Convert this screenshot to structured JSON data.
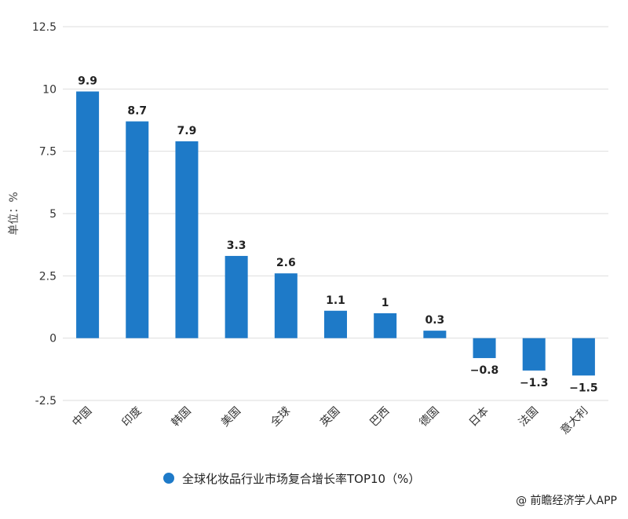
{
  "chart_data": {
    "type": "bar",
    "categories": [
      "中国",
      "印度",
      "韩国",
      "美国",
      "全球",
      "英国",
      "巴西",
      "德国",
      "日本",
      "法国",
      "意大利"
    ],
    "values": [
      9.9,
      8.7,
      7.9,
      3.3,
      2.6,
      1.1,
      1,
      0.3,
      -0.8,
      -1.3,
      -1.5
    ],
    "data_labels": [
      "9.9",
      "8.7",
      "7.9",
      "3.3",
      "2.6",
      "1.1",
      "1",
      "0.3",
      "−0.8",
      "−1.3",
      "−1.5"
    ],
    "ylabel": "单位：%",
    "ylim": [
      -2.5,
      12.5
    ],
    "yticks": [
      -2.5,
      0,
      2.5,
      5,
      7.5,
      10,
      12.5
    ],
    "ytick_labels": [
      "-2.5",
      "0",
      "2.5",
      "5",
      "7.5",
      "10",
      "12.5"
    ],
    "grid": true,
    "bar_color": "#1e7ac8",
    "legend_position": "bottom-center",
    "series": [
      {
        "name": "全球化妆品行业市场复合增长率TOP10（%）",
        "values": [
          9.9,
          8.7,
          7.9,
          3.3,
          2.6,
          1.1,
          1,
          0.3,
          -0.8,
          -1.3,
          -1.5
        ]
      }
    ]
  },
  "legend": {
    "label": "全球化妆品行业市场复合增长率TOP10（%）",
    "color": "#1e7ac8"
  },
  "credit": "@ 前瞻经济学人APP"
}
